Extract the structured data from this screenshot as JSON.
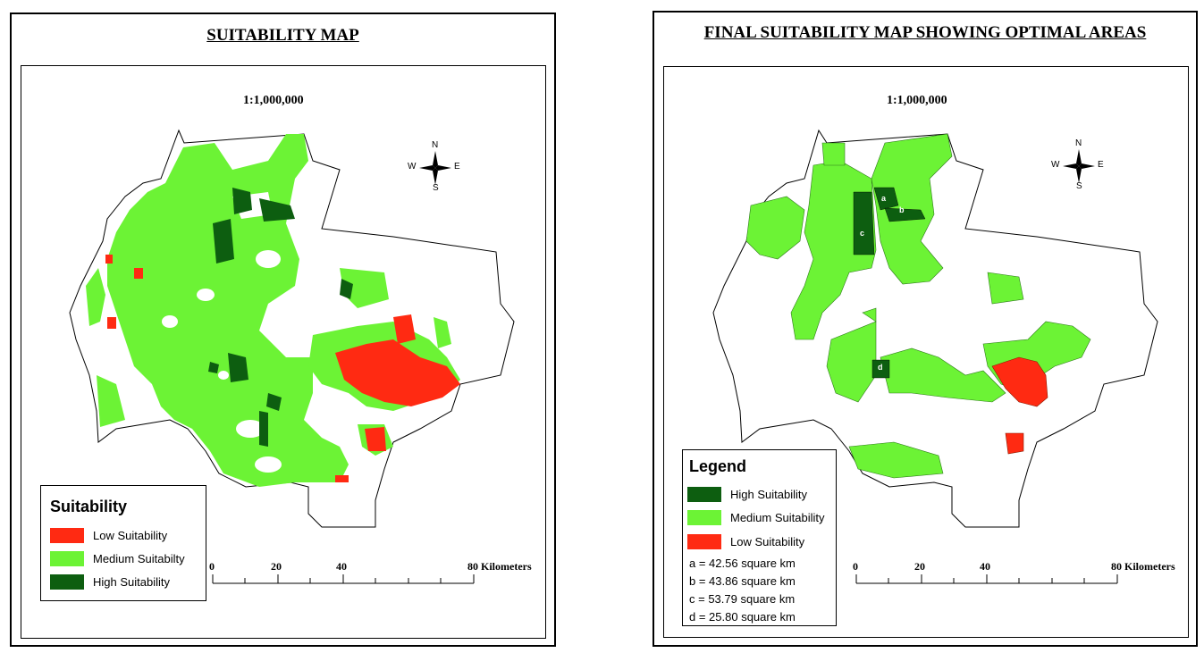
{
  "colors": {
    "low": "#ff2a12",
    "medium": "#6cf335",
    "high": "#0d5e10"
  },
  "left_panel": {
    "title": "SUITABILITY MAP",
    "scale": "1:1,000,000",
    "legend": {
      "title": "Suitability",
      "items": [
        {
          "label": "Low Suitability",
          "color": "#ff2a12"
        },
        {
          "label": "Medium Suitabilty",
          "color": "#6cf335"
        },
        {
          "label": "High Suitability",
          "color": "#0d5e10"
        }
      ]
    },
    "scalebar": {
      "ticks": [
        "0",
        "20",
        "40"
      ],
      "end_label": "80 Kilometers"
    },
    "compass": {
      "n": "N",
      "s": "S",
      "e": "E",
      "w": "W"
    }
  },
  "right_panel": {
    "title": "FINAL SUITABILITY MAP SHOWING OPTIMAL AREAS",
    "scale": "1:1,000,000",
    "legend": {
      "title": "Legend",
      "items": [
        {
          "label": "High Suitability",
          "color": "#0d5e10"
        },
        {
          "label": "Medium Suitability",
          "color": "#6cf335"
        },
        {
          "label": "Low Suitability",
          "color": "#ff2a12"
        }
      ],
      "areas": [
        "a = 42.56 square km",
        "b = 43.86 square km",
        "c = 53.79 square km",
        "d = 25.80 square km"
      ]
    },
    "scalebar": {
      "ticks": [
        "0",
        "20",
        "40"
      ],
      "end_label": "80 Kilometers"
    },
    "compass": {
      "n": "N",
      "s": "S",
      "e": "E",
      "w": "W"
    },
    "area_markers": [
      "a",
      "b",
      "c",
      "d"
    ]
  }
}
